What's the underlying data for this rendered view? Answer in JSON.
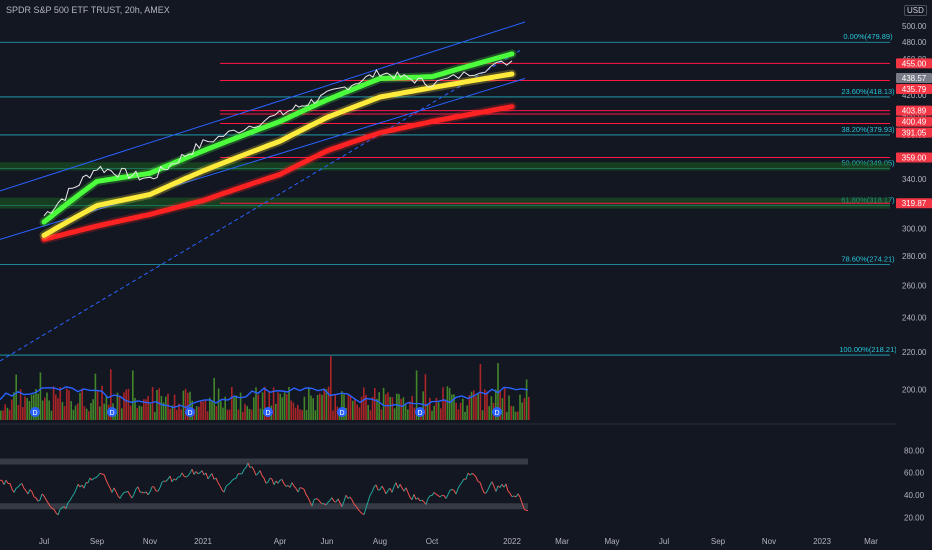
{
  "header": {
    "title": "SPDR S&P 500 ETF TRUST, 20h, AMEX",
    "currency": "USD"
  },
  "colors": {
    "background": "#131722",
    "price_candle_up": "#e8e8e8",
    "ema_fast": "#4cff3c",
    "ema_mid": "#ffeb3b",
    "ema_slow": "#ff2222",
    "fib_line": "#26c6da",
    "channel": "#2962ff",
    "volume_up": "#26a69a",
    "volume_down": "#ef5350",
    "volume_ma": "#2962ff"
  },
  "chart_data": [
    {
      "type": "line",
      "title": "SPDR S&P 500 ETF TRUST, 20h, AMEX",
      "y_axis_ticks": [
        500,
        480,
        460,
        440,
        420,
        400,
        380,
        360,
        340,
        320,
        300,
        280,
        260,
        240,
        220,
        200
      ],
      "x_axis_ticks": [
        "Jul",
        "Sep",
        "Nov",
        "2021",
        "Apr",
        "Jun",
        "Aug",
        "Oct",
        "2022",
        "Mar",
        "May",
        "Jul",
        "Sep",
        "Nov",
        "2023",
        "Mar"
      ],
      "ylim": [
        190,
        505
      ],
      "log_scale": true,
      "grid": false,
      "series": [
        {
          "role": "price",
          "x": [
            "Jul",
            "Sep",
            "Nov",
            "2021",
            "Apr",
            "Jun",
            "Aug",
            "Oct",
            "2022"
          ],
          "values": [
            310,
            350,
            340,
            372,
            400,
            420,
            445,
            432,
            458
          ]
        },
        {
          "role": "ema_fast",
          "x": [
            "Jul",
            "Sep",
            "Nov",
            "2021",
            "Apr",
            "Jun",
            "Aug",
            "Oct",
            "2022"
          ],
          "values": [
            305,
            338,
            345,
            365,
            393,
            415,
            438,
            440,
            466
          ]
        },
        {
          "role": "ema_mid",
          "x": [
            "Jul",
            "Sep",
            "Nov",
            "2021",
            "Apr",
            "Jun",
            "Aug",
            "Oct",
            "2022"
          ],
          "values": [
            295,
            318,
            327,
            347,
            374,
            397,
            418,
            428,
            443
          ]
        },
        {
          "role": "ema_slow",
          "x": [
            "Jul",
            "Sep",
            "Nov",
            "2021",
            "Apr",
            "Jun",
            "Aug",
            "Oct",
            "2022"
          ],
          "values": [
            292,
            302,
            311,
            322,
            344,
            365,
            382,
            393,
            408
          ]
        }
      ],
      "fib_levels": [
        {
          "label": "0.00%(479.89)",
          "value": 479.89
        },
        {
          "label": "23.60%(418.13)",
          "value": 418.13
        },
        {
          "label": "38.20%(379.93)",
          "value": 379.93
        },
        {
          "label": "50.00%(349.05)",
          "value": 349.05
        },
        {
          "label": "61.80%(318.17)",
          "value": 318.17
        },
        {
          "label": "78.60%(274.21)",
          "value": 274.21
        },
        {
          "label": "100.00%(218.21)",
          "value": 218.21
        }
      ],
      "price_tags": [
        {
          "label": "455.00",
          "value": 455.0,
          "color": "#f23645"
        },
        {
          "label": "438.57",
          "value": 438.57,
          "color": "#787b86"
        },
        {
          "label": "435.79",
          "value": 435.79,
          "color": "#f23645"
        },
        {
          "label": "403.89",
          "value": 403.89,
          "color": "#f23645"
        },
        {
          "label": "400.49",
          "value": 400.49,
          "color": "#f23645"
        },
        {
          "label": "391.05",
          "value": 391.05,
          "color": "#f23645"
        },
        {
          "label": "359.00",
          "value": 359.0,
          "color": "#f23645"
        },
        {
          "label": "319.87",
          "value": 319.87,
          "color": "#f23645"
        }
      ],
      "support_zones": [
        [
          350,
          352
        ],
        [
          318,
          322
        ]
      ]
    },
    {
      "type": "bar",
      "role": "volume",
      "note": "volume histogram overlay with moving average and dividend markers",
      "dividend_marker": "D"
    },
    {
      "type": "line",
      "role": "oscillator",
      "y_axis_ticks": [
        80,
        60,
        40,
        20
      ],
      "ylim": [
        15,
        92
      ],
      "bands": [
        70,
        30
      ]
    }
  ]
}
